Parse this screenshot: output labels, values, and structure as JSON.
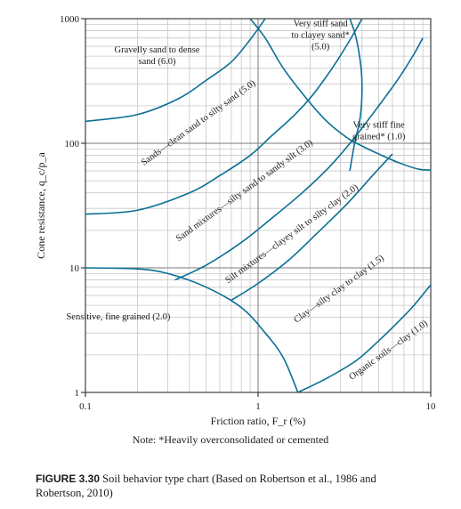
{
  "chart_data": {
    "type": "line",
    "title": "",
    "xlabel": "Friction ratio, F_r (%)",
    "ylabel": "Cone resistance, q_c/p_a",
    "x_scale": "log",
    "y_scale": "log",
    "xlim": [
      0.1,
      10
    ],
    "ylim": [
      1,
      1000
    ],
    "x_ticks": [
      {
        "value": 0.1,
        "label": "0.1"
      },
      {
        "value": 1,
        "label": "1"
      },
      {
        "value": 10,
        "label": "10"
      }
    ],
    "y_ticks": [
      {
        "value": 1,
        "label": "1"
      },
      {
        "value": 10,
        "label": "10"
      },
      {
        "value": 100,
        "label": "100"
      },
      {
        "value": 1000,
        "label": "1000"
      }
    ],
    "grid": true,
    "zone_boundaries": [
      {
        "id": "b-zone6-upper",
        "points": [
          [
            0.1,
            150
          ],
          [
            0.2,
            170
          ],
          [
            0.35,
            230
          ],
          [
            0.5,
            320
          ],
          [
            0.7,
            450
          ],
          [
            0.9,
            680
          ],
          [
            1.1,
            1000
          ]
        ]
      },
      {
        "id": "b-zone5-upper",
        "points": [
          [
            0.1,
            27
          ],
          [
            0.2,
            29
          ],
          [
            0.4,
            40
          ],
          [
            0.6,
            55
          ],
          [
            0.9,
            80
          ],
          [
            1.2,
            115
          ],
          [
            1.6,
            165
          ],
          [
            2.0,
            230
          ],
          [
            2.4,
            320
          ],
          [
            2.9,
            470
          ],
          [
            3.5,
            720
          ],
          [
            4.0,
            1000
          ]
        ]
      },
      {
        "id": "b-zone4-upper",
        "points": [
          [
            0.33,
            8
          ],
          [
            0.5,
            10.5
          ],
          [
            0.8,
            16
          ],
          [
            1.2,
            25
          ],
          [
            1.8,
            40
          ],
          [
            2.6,
            65
          ],
          [
            3.6,
            110
          ],
          [
            5.0,
            200
          ],
          [
            6.5,
            330
          ],
          [
            8.0,
            520
          ],
          [
            9.0,
            700
          ]
        ]
      },
      {
        "id": "b-zone3-upper",
        "points": [
          [
            0.7,
            5.5
          ],
          [
            1.0,
            7.5
          ],
          [
            1.5,
            11.5
          ],
          [
            2.2,
            19
          ],
          [
            3.3,
            33
          ],
          [
            4.6,
            55
          ],
          [
            6.0,
            82
          ]
        ]
      },
      {
        "id": "b-zone2-upper",
        "points": [
          [
            0.1,
            10
          ],
          [
            0.2,
            9.8
          ],
          [
            0.3,
            9
          ],
          [
            0.5,
            7
          ],
          [
            0.8,
            4.8
          ],
          [
            1.1,
            3
          ],
          [
            1.4,
            1.9
          ],
          [
            1.7,
            1
          ]
        ]
      },
      {
        "id": "b-zone1-upper",
        "points": [
          [
            1.7,
            1
          ],
          [
            2.5,
            1.3
          ],
          [
            3.7,
            1.8
          ],
          [
            5.0,
            2.6
          ],
          [
            6.5,
            3.7
          ],
          [
            8.0,
            5
          ],
          [
            10,
            7.3
          ]
        ]
      },
      {
        "id": "b-zone9-lower",
        "points": [
          [
            0.9,
            1000
          ],
          [
            1.1,
            700
          ],
          [
            1.4,
            400
          ],
          [
            1.9,
            230
          ],
          [
            2.5,
            150
          ],
          [
            3.3,
            110
          ],
          [
            4.0,
            95
          ],
          [
            5.0,
            82
          ],
          [
            6.5,
            70
          ],
          [
            8.5,
            62
          ],
          [
            10,
            61
          ]
        ]
      },
      {
        "id": "b-zone9-left",
        "points": [
          [
            3.4,
            1000
          ],
          [
            3.7,
            700
          ],
          [
            3.95,
            400
          ],
          [
            4.0,
            260
          ],
          [
            3.9,
            160
          ],
          [
            3.6,
            95
          ],
          [
            3.4,
            60
          ]
        ]
      }
    ],
    "zones": [
      {
        "id": 1,
        "label": "Sensitive, fine grained (2.0)",
        "x": 0.155,
        "y": 3.85,
        "rotate": false
      },
      {
        "id": 2,
        "label": "Organic soils—clay (1.0)",
        "x": 5.8,
        "y": 2.1,
        "rotate": true
      },
      {
        "id": 3,
        "label": "Clay—silty clay to clay (1.5)",
        "x": 3.0,
        "y": 6.5,
        "rotate": true
      },
      {
        "id": 4,
        "label": "Silt mixtures—clayey silt to silty clay (2.0)",
        "x": 1.6,
        "y": 18,
        "rotate": true
      },
      {
        "id": 5,
        "label": "Sand mixtures—silty sand to sandy silt (3.0)",
        "x": 0.85,
        "y": 40,
        "rotate": true
      },
      {
        "id": 6,
        "label": "Sands—clean sand to silty sand (5.0)",
        "x": 0.46,
        "y": 140,
        "rotate": true
      },
      {
        "id": 7,
        "label": "Gravelly sand to dense sand (6.0)",
        "x": 0.26,
        "y": 480,
        "rotate": false
      },
      {
        "id": 8,
        "label": "Very stiff sand to clayey sand* (5.0)",
        "x": 2.3,
        "y": 700,
        "rotate": false
      },
      {
        "id": 9,
        "label": "Very stiff fine grained* (1.0)",
        "x": 5.0,
        "y": 120,
        "rotate": false
      }
    ]
  },
  "note": "Note: *Heavily overconsolidated or cemented",
  "caption": {
    "figure_label": "FIGURE 3.30",
    "text": "Soil behavior type chart (Based on Robertson et al., 1986 and Robertson, 2010)"
  },
  "colors": {
    "curve": "#0a6f95",
    "grid": "#c8c8c8",
    "major_grid": "#7a7a7a",
    "axis": "#1a1a1a"
  }
}
